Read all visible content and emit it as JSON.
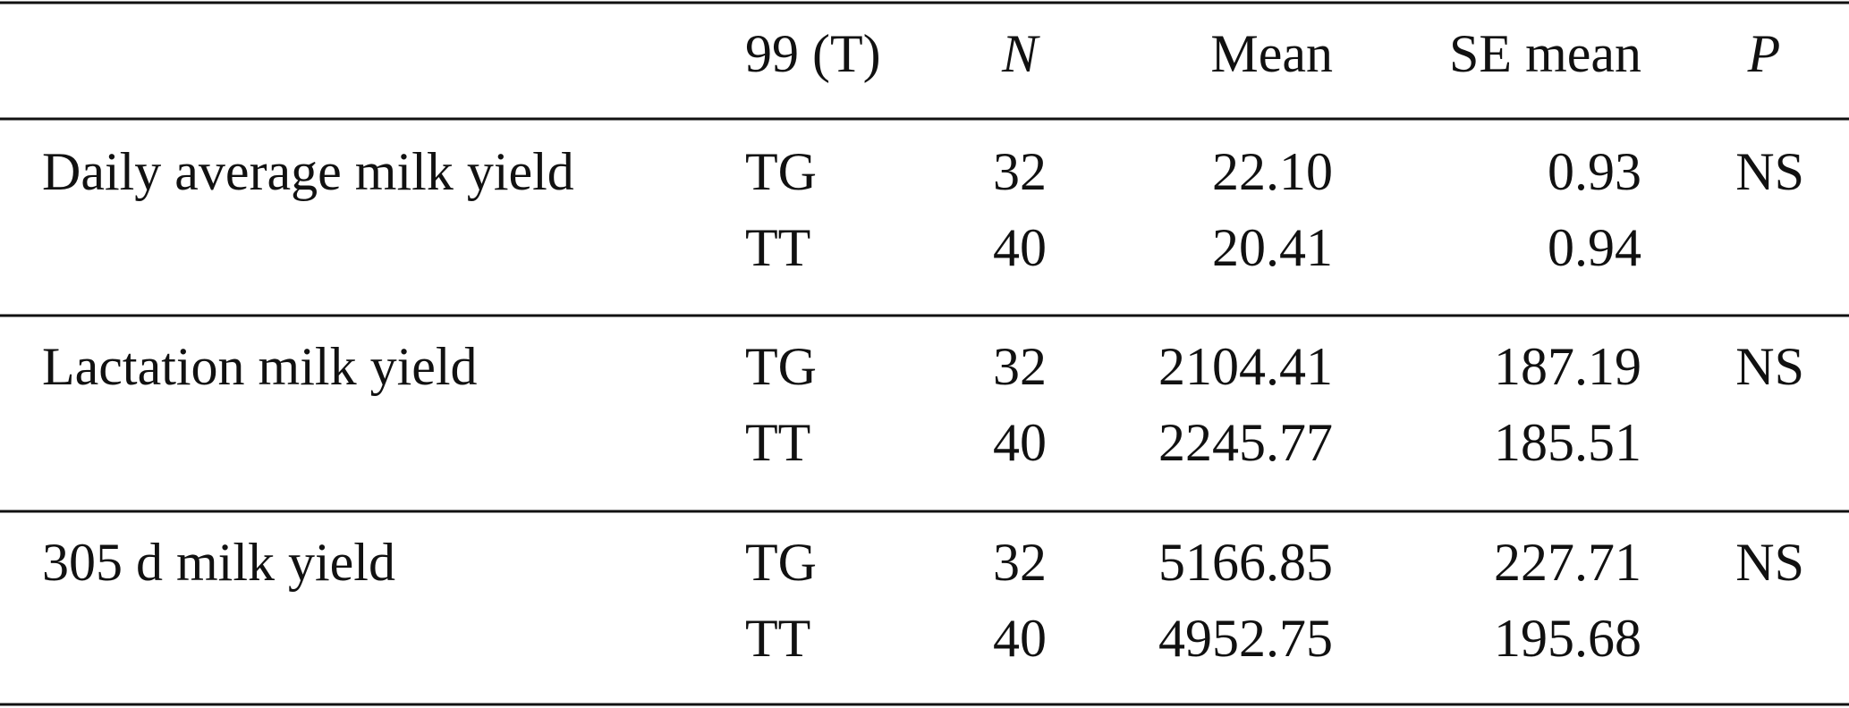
{
  "table": {
    "columns": [
      "99 (T)",
      "N",
      "Mean",
      "SE mean",
      "P"
    ],
    "groups": [
      {
        "trait": "Daily average milk yield",
        "p": "NS",
        "rows": [
          [
            "TG",
            "32",
            "22.10",
            "0.93"
          ],
          [
            "TT",
            "40",
            "20.41",
            "0.94"
          ]
        ]
      },
      {
        "trait": "Lactation milk yield",
        "p": "NS",
        "rows": [
          [
            "TG",
            "32",
            "2104.41",
            "187.19"
          ],
          [
            "TT",
            "40",
            "2245.77",
            "185.51"
          ]
        ]
      },
      {
        "trait": "305 d milk yield",
        "p": "NS",
        "rows": [
          [
            "TG",
            "32",
            "5166.85",
            "227.71"
          ],
          [
            "TT",
            "40",
            "4952.75",
            "195.68"
          ]
        ]
      }
    ]
  }
}
